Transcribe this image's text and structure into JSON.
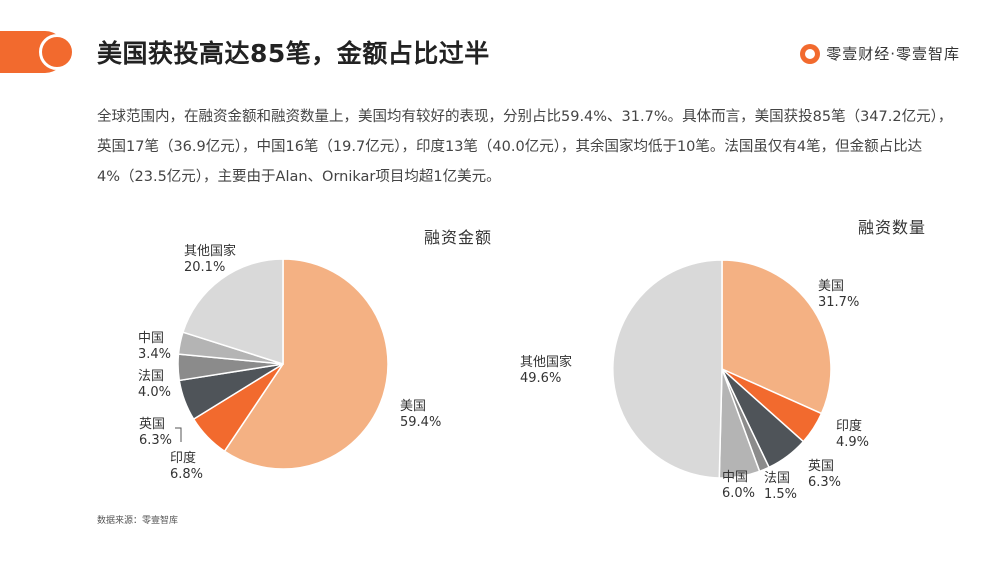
{
  "header": {
    "title": "美国获投高达85笔，金额占比过半",
    "brand": "零壹财经·零壹智库"
  },
  "description": "全球范围内，在融资金额和融资数量上，美国均有较好的表现，分别占比59.4%、31.7%。具体而言，美国获投85笔（347.2亿元），英国17笔（36.9亿元），中国16笔（19.7亿元），印度13笔（40.0亿元），其余国家均低于10笔。法国虽仅有4笔，但金额占比达4%（23.5亿元），主要由于Alan、Ornikar项目均超1亿美元。",
  "footer": {
    "source": "数据来源：零壹智库"
  },
  "colors": {
    "accent": "#f26a2e",
    "美国": "#f4b183",
    "印度": "#f26a2e",
    "英国": "#4f5459",
    "法国": "#8b8b8b",
    "中国": "#b4b4b4",
    "其他国家": "#d9d9d9"
  },
  "chart_data": [
    {
      "type": "pie",
      "title": "融资金额",
      "categories": [
        "美国",
        "印度",
        "英国",
        "法国",
        "中国",
        "其他国家"
      ],
      "values": [
        59.4,
        6.8,
        6.3,
        4.0,
        3.4,
        20.1
      ],
      "labels": [
        "59.4%",
        "6.8%",
        "6.3%",
        "4.0%",
        "3.4%",
        "20.1%"
      ]
    },
    {
      "type": "pie",
      "title": "融资数量",
      "categories": [
        "美国",
        "印度",
        "英国",
        "法国",
        "中国",
        "其他国家"
      ],
      "values": [
        31.7,
        4.9,
        6.3,
        1.5,
        6.0,
        49.6
      ],
      "labels": [
        "31.7%",
        "4.9%",
        "6.3%",
        "1.5%",
        "6.0%",
        "49.6%"
      ]
    }
  ]
}
